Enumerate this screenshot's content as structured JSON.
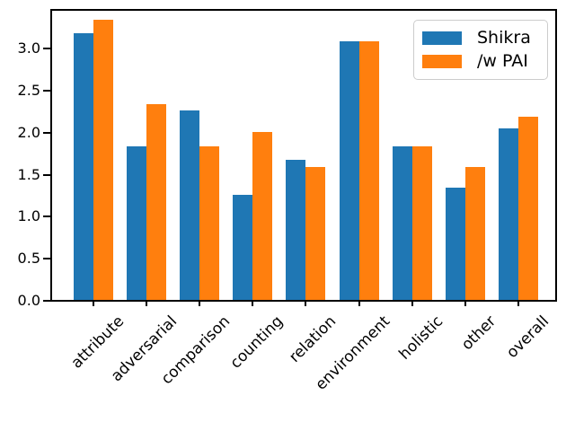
{
  "chart_data": {
    "type": "bar",
    "title": "",
    "xlabel": "",
    "ylabel": "",
    "categories": [
      "attribute",
      "adversarial",
      "comparison",
      "counting",
      "relation",
      "environment",
      "holistic",
      "other",
      "overall"
    ],
    "series": [
      {
        "name": "Shikra",
        "color": "#1f77b4",
        "values": [
          3.17,
          1.83,
          2.25,
          1.25,
          1.67,
          3.07,
          1.83,
          1.33,
          2.04
        ]
      },
      {
        "name": "/w PAI",
        "color": "#ff7f0e",
        "values": [
          3.33,
          2.33,
          1.83,
          2.0,
          1.58,
          3.07,
          1.83,
          1.58,
          2.18
        ]
      }
    ],
    "ylim": [
      0,
      3.48
    ],
    "yticks": [
      0,
      0.5,
      1,
      1.5,
      2,
      2.5,
      3
    ],
    "ytick_labels": [
      "0.0",
      "0.5",
      "1.0",
      "1.5",
      "2.0",
      "2.5",
      "3.0"
    ],
    "xtick_rotation": 45,
    "grid": false,
    "legend": {
      "position": "upper right",
      "entries": [
        "Shikra",
        "/w PAI"
      ]
    }
  },
  "colors": {
    "series_blue": "#1f77b4",
    "series_orange": "#ff7f0e",
    "axis": "#000000",
    "legend_border": "#cccccc",
    "background": "#ffffff"
  }
}
